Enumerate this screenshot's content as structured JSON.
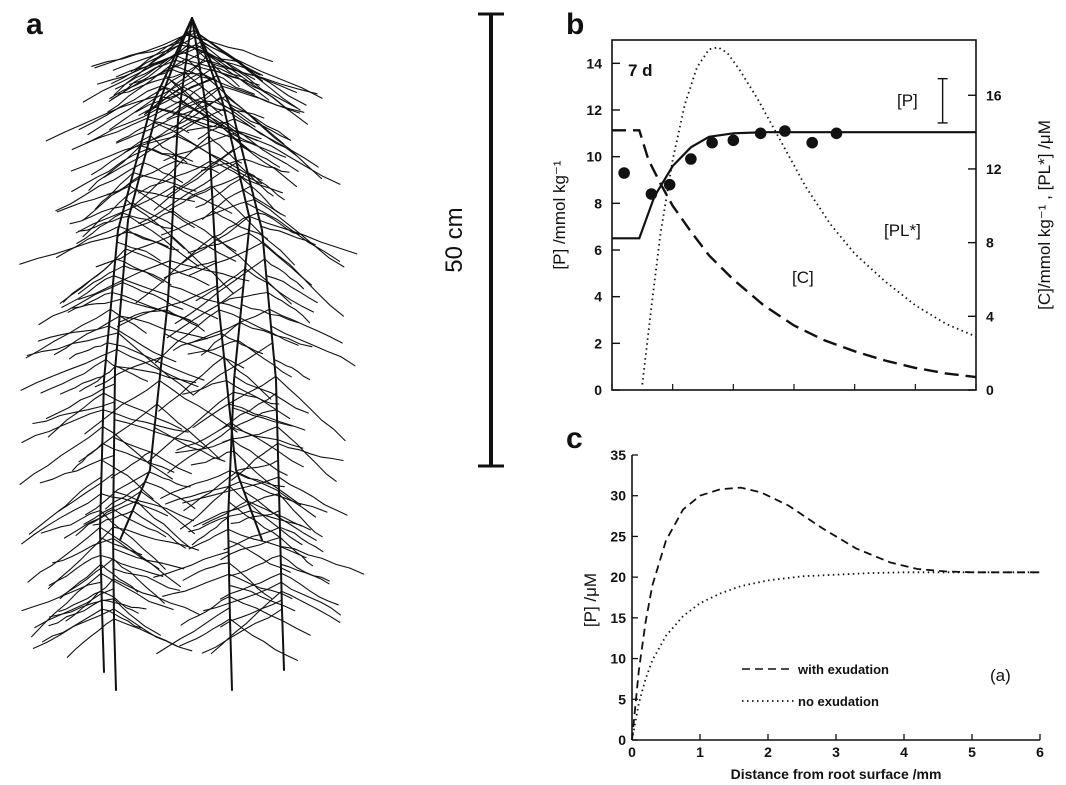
{
  "panels": {
    "a": "a",
    "b": "b",
    "c": "c"
  },
  "panel_a": {
    "scale_label": "50 cm"
  },
  "chart_data": [
    {
      "id": "b",
      "type": "line",
      "xlim": [
        0,
        6
      ],
      "ylim": [
        0,
        15
      ],
      "y2lim": [
        0,
        19
      ],
      "yticks": [
        0,
        2,
        4,
        6,
        8,
        10,
        12,
        14
      ],
      "y2ticks": [
        0,
        4,
        8,
        12,
        16
      ],
      "ylabel": "[P] /mmol kg⁻¹",
      "y2label": "[C]/mmol kg⁻¹ , [PL*] /μM",
      "annotations": {
        "time": "7 d",
        "P": "[P]",
        "C": "[C]",
        "PL": "[PL*]"
      },
      "series": [
        {
          "name": "[P]",
          "axis": "left",
          "style": "solid",
          "x": [
            0,
            0.15,
            0.45,
            0.45,
            0.7,
            1.0,
            1.3,
            1.6,
            2.0,
            2.5,
            3.0,
            4.0,
            5.0,
            6.0
          ],
          "y": [
            6.5,
            6.5,
            6.5,
            6.5,
            8.3,
            9.6,
            10.4,
            10.85,
            11.0,
            11.05,
            11.05,
            11.05,
            11.05,
            11.05
          ]
        },
        {
          "name": "[C]",
          "axis": "right",
          "style": "dashed",
          "x": [
            0,
            0.45,
            0.6,
            0.8,
            1.0,
            1.3,
            1.6,
            2.0,
            2.5,
            3.0,
            3.5,
            4.0,
            4.5,
            5.0,
            5.5,
            6.0
          ],
          "y": [
            14.1,
            14.1,
            12.5,
            11.2,
            10.0,
            8.6,
            7.3,
            6.0,
            4.6,
            3.5,
            2.7,
            2.1,
            1.6,
            1.2,
            0.9,
            0.7
          ]
        },
        {
          "name": "[PL*]",
          "axis": "right",
          "style": "dotted",
          "x": [
            0.5,
            0.65,
            0.8,
            1.0,
            1.2,
            1.4,
            1.6,
            1.75,
            1.9,
            2.1,
            2.4,
            2.8,
            3.2,
            3.6,
            4.0,
            4.5,
            5.0,
            5.5,
            6.0
          ],
          "y": [
            0.3,
            4.5,
            8.5,
            12.5,
            15.5,
            17.5,
            18.5,
            18.6,
            18.3,
            17.4,
            15.8,
            13.4,
            11.0,
            9.0,
            7.4,
            5.9,
            4.6,
            3.6,
            2.9
          ]
        },
        {
          "name": "[P] measured",
          "axis": "left",
          "style": "points",
          "x": [
            0.2,
            0.65,
            0.95,
            1.3,
            1.65,
            2.0,
            2.45,
            2.85,
            3.3,
            3.7
          ],
          "y": [
            9.3,
            8.4,
            8.8,
            9.9,
            10.6,
            10.7,
            11.0,
            11.1,
            10.6,
            11.0
          ]
        }
      ],
      "error_bar": {
        "x": 5.45,
        "y_low": 14.5,
        "y_high": 16.9
      }
    },
    {
      "id": "c",
      "type": "line",
      "xlim": [
        0,
        6
      ],
      "ylim": [
        0,
        35
      ],
      "xticks": [
        0,
        1,
        2,
        3,
        4,
        5,
        6
      ],
      "yticks": [
        0,
        5,
        10,
        15,
        20,
        25,
        30,
        35
      ],
      "xlabel": "Distance from root surface /mm",
      "ylabel": "[P] /μM",
      "corner_label": "(a)",
      "series": [
        {
          "name": "with exudation",
          "style": "dashed",
          "x": [
            0,
            0.1,
            0.2,
            0.3,
            0.5,
            0.75,
            1.0,
            1.3,
            1.6,
            1.9,
            2.3,
            2.8,
            3.3,
            3.8,
            4.2,
            4.6,
            5.0,
            5.5,
            6.0
          ],
          "y": [
            0,
            8.5,
            14.5,
            19.0,
            24.5,
            28.3,
            30.0,
            30.8,
            31.0,
            30.4,
            28.8,
            26.0,
            23.5,
            21.8,
            21.0,
            20.7,
            20.6,
            20.6,
            20.6
          ]
        },
        {
          "name": "no exudation",
          "style": "dotted",
          "x": [
            0,
            0.1,
            0.2,
            0.3,
            0.5,
            0.75,
            1.0,
            1.3,
            1.6,
            2.0,
            2.5,
            3.0,
            3.5,
            4.0,
            5.0,
            6.0
          ],
          "y": [
            0,
            4.5,
            7.5,
            9.8,
            12.8,
            15.2,
            16.8,
            18.0,
            18.9,
            19.6,
            20.1,
            20.3,
            20.5,
            20.6,
            20.6,
            20.6
          ]
        }
      ]
    }
  ]
}
